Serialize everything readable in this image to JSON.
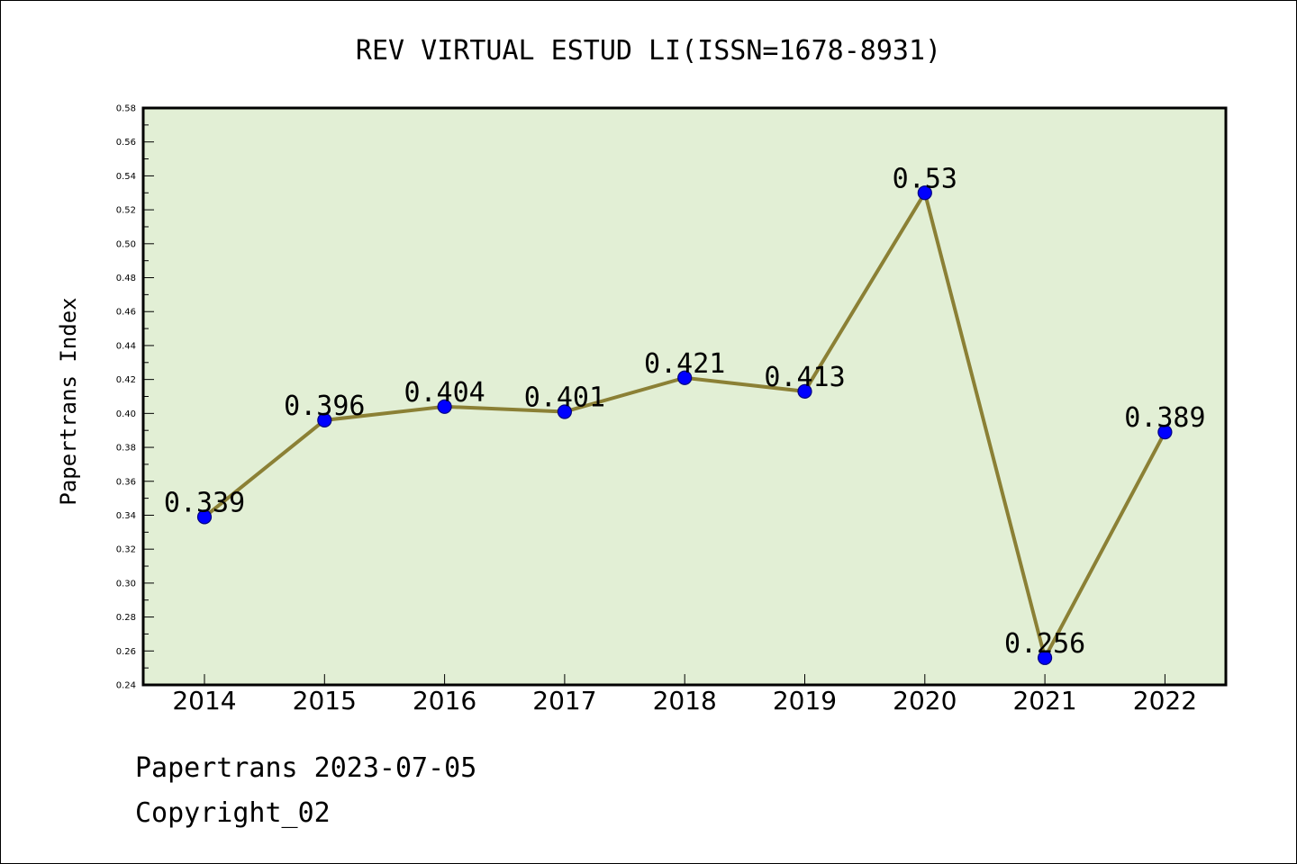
{
  "chart_data": {
    "type": "line",
    "title": "REV VIRTUAL ESTUD LI(ISSN=1678-8931)",
    "ylabel": "Papertrans Index",
    "xlabel": "",
    "categories": [
      "2014",
      "2015",
      "2016",
      "2017",
      "2018",
      "2019",
      "2020",
      "2021",
      "2022"
    ],
    "series": [
      {
        "values": [
          0.339,
          0.396,
          0.404,
          0.401,
          0.421,
          0.413,
          0.53,
          0.256,
          0.389
        ],
        "labels": [
          "0.339",
          "0.396",
          "0.404",
          "0.401",
          "0.421",
          "0.413",
          "0.53",
          "0.256",
          "0.389"
        ]
      }
    ],
    "ylim": [
      0.24,
      0.58
    ],
    "yticks": [
      "0.24",
      "0.26",
      "0.28",
      "0.30",
      "0.32",
      "0.34",
      "0.36",
      "0.38",
      "0.40",
      "0.42",
      "0.44",
      "0.46",
      "0.48",
      "0.50",
      "0.52",
      "0.54",
      "0.56",
      "0.58"
    ],
    "grid": false,
    "legend": "none",
    "colors": {
      "plot_background": "#e2efd5",
      "line": "#8b8035",
      "marker": "#0000ff",
      "marker_edge": "#000080"
    }
  },
  "footer": {
    "date_line": "Papertrans 2023-07-05",
    "copyright_line": "Copyright_02"
  }
}
